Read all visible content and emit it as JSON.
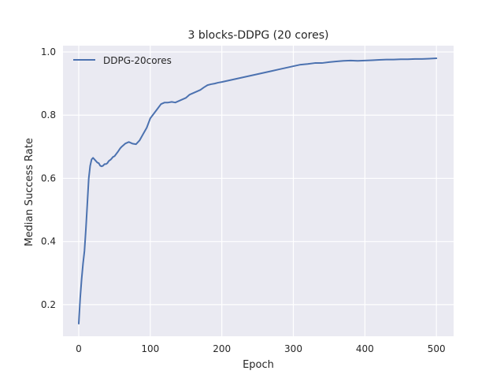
{
  "chart_data": {
    "type": "line",
    "title": "3 blocks-DDPG (20 cores)",
    "xlabel": "Epoch",
    "ylabel": "Median Success Rate",
    "xlim": [
      -22,
      524
    ],
    "ylim": [
      0.1,
      1.02
    ],
    "xticks": [
      0,
      100,
      200,
      300,
      400,
      500
    ],
    "yticks": [
      0.2,
      0.4,
      0.6,
      0.8,
      1.0
    ],
    "xtick_labels": [
      "0",
      "100",
      "200",
      "300",
      "400",
      "500"
    ],
    "ytick_labels": [
      "0.2",
      "0.4",
      "0.6",
      "0.8",
      "1.0"
    ],
    "grid": true,
    "legend_position": "top-left",
    "colors": {
      "background": "#eaeaf2",
      "grid": "#ffffff",
      "series": "#4c72b0"
    },
    "series": [
      {
        "name": "DDPG-20cores",
        "x": [
          0,
          2,
          4,
          6,
          8,
          10,
          12,
          14,
          16,
          18,
          20,
          22,
          24,
          26,
          28,
          30,
          32,
          34,
          36,
          38,
          40,
          42,
          45,
          48,
          50,
          55,
          58,
          60,
          65,
          70,
          75,
          80,
          85,
          90,
          95,
          100,
          105,
          110,
          115,
          120,
          125,
          130,
          135,
          140,
          145,
          150,
          155,
          160,
          165,
          170,
          175,
          180,
          185,
          190,
          195,
          200,
          210,
          220,
          230,
          240,
          250,
          260,
          270,
          280,
          290,
          300,
          310,
          320,
          330,
          340,
          350,
          360,
          370,
          380,
          390,
          400,
          410,
          420,
          430,
          440,
          450,
          460,
          470,
          480,
          490,
          500
        ],
        "values": [
          0.14,
          0.22,
          0.28,
          0.33,
          0.37,
          0.44,
          0.52,
          0.6,
          0.64,
          0.66,
          0.665,
          0.66,
          0.655,
          0.65,
          0.648,
          0.64,
          0.638,
          0.64,
          0.645,
          0.645,
          0.648,
          0.655,
          0.66,
          0.668,
          0.67,
          0.685,
          0.695,
          0.7,
          0.71,
          0.715,
          0.71,
          0.708,
          0.72,
          0.74,
          0.76,
          0.79,
          0.805,
          0.82,
          0.835,
          0.84,
          0.84,
          0.842,
          0.84,
          0.845,
          0.85,
          0.855,
          0.865,
          0.87,
          0.875,
          0.88,
          0.888,
          0.895,
          0.898,
          0.9,
          0.903,
          0.905,
          0.91,
          0.915,
          0.92,
          0.925,
          0.93,
          0.935,
          0.94,
          0.945,
          0.95,
          0.955,
          0.96,
          0.962,
          0.965,
          0.965,
          0.968,
          0.97,
          0.972,
          0.973,
          0.972,
          0.973,
          0.974,
          0.975,
          0.976,
          0.976,
          0.977,
          0.977,
          0.978,
          0.978,
          0.979,
          0.98
        ]
      }
    ]
  }
}
